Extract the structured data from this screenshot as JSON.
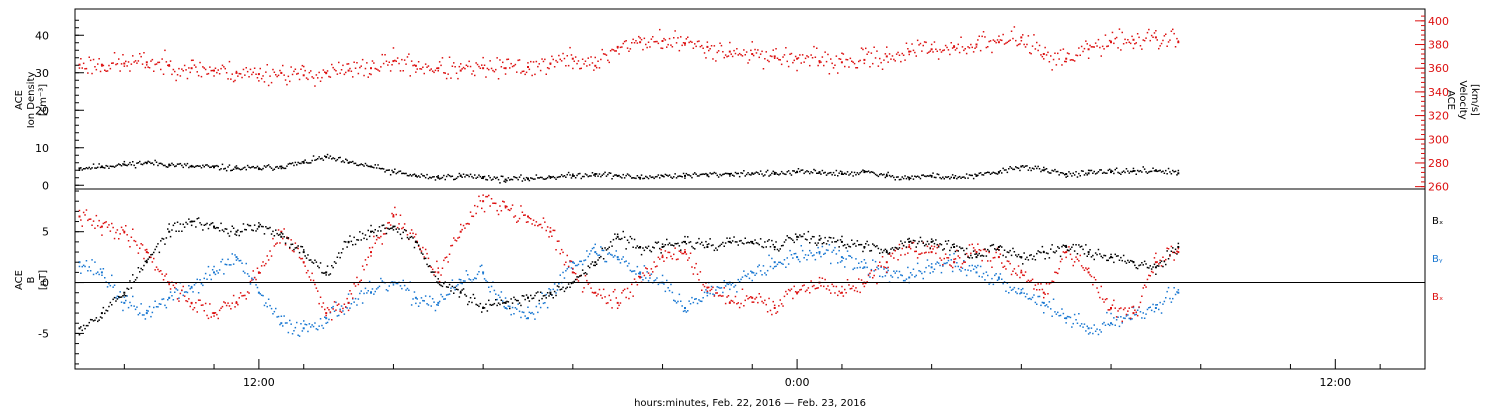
{
  "xlabel": "hours:minutes, Feb. 22, 2016 — Feb. 23, 2016",
  "x_ticks": [
    "12:00",
    "0:00",
    "12:00"
  ],
  "x_tick_hours": [
    12,
    24,
    36
  ],
  "x_range_hours": [
    7.9,
    38.0
  ],
  "colors": {
    "density": "#000000",
    "velocity": "#dd1111",
    "bx": "#000000",
    "by": "#1a78d2",
    "bz": "#dd1111",
    "axis": "#000000"
  },
  "chart_data": [
    {
      "type": "scatter",
      "panel": "plasma",
      "ylabel_left": [
        "ACE",
        "Ion Density",
        "[cm⁻³]"
      ],
      "ylabel_right": [
        "ACE",
        "Velocity",
        "[km/s]"
      ],
      "ylim_left": [
        -1,
        47
      ],
      "ylim_right": [
        258,
        410
      ],
      "yticks_left": [
        0,
        10,
        20,
        30,
        40
      ],
      "yticks_right": [
        260,
        280,
        300,
        320,
        340,
        360,
        380,
        400
      ],
      "series": [
        {
          "key": "density",
          "axis": "left",
          "x_hours": [
            8.0,
            8.5,
            9.0,
            9.5,
            10.0,
            10.5,
            11.0,
            11.5,
            12.0,
            12.5,
            13.0,
            13.5,
            14.0,
            14.5,
            15.0,
            15.5,
            16.0,
            16.5,
            17.0,
            17.5,
            18.0,
            18.5,
            19.0,
            19.5,
            20.0,
            20.5,
            21.0,
            21.5,
            22.0,
            22.5,
            23.0,
            23.5,
            24.0,
            24.5,
            25.0,
            25.5,
            26.0,
            26.5,
            27.0,
            27.5,
            28.0,
            28.5,
            29.0,
            29.5,
            30.0,
            30.5,
            31.0,
            31.5,
            32.0,
            32.5
          ],
          "values": [
            4.5,
            5.0,
            5.5,
            6.0,
            5.5,
            5.0,
            4.8,
            4.5,
            4.5,
            5.0,
            6.0,
            7.5,
            6.0,
            5.0,
            3.5,
            2.5,
            2.0,
            2.5,
            2.2,
            1.5,
            1.8,
            2.2,
            2.5,
            3.0,
            2.5,
            2.0,
            2.5,
            2.5,
            2.8,
            3.0,
            3.2,
            3.0,
            3.5,
            3.5,
            3.0,
            3.5,
            2.5,
            2.0,
            2.5,
            2.0,
            2.5,
            3.5,
            5.0,
            4.0,
            3.0,
            3.2,
            3.5,
            3.8,
            4.0,
            3.2
          ]
        },
        {
          "key": "velocity",
          "axis": "right",
          "x_hours": [
            8.0,
            8.5,
            9.0,
            9.5,
            10.0,
            10.5,
            11.0,
            11.5,
            12.0,
            12.5,
            13.0,
            13.5,
            14.0,
            14.5,
            15.0,
            15.5,
            16.0,
            16.5,
            17.0,
            17.5,
            18.0,
            18.5,
            19.0,
            19.5,
            20.0,
            20.5,
            21.0,
            21.5,
            22.0,
            22.5,
            23.0,
            23.5,
            24.0,
            24.5,
            25.0,
            25.5,
            26.0,
            26.5,
            27.0,
            27.5,
            28.0,
            28.5,
            29.0,
            29.5,
            30.0,
            30.5,
            31.0,
            31.5,
            32.0,
            32.5
          ],
          "values": [
            363,
            363,
            364,
            365,
            362,
            360,
            358,
            356,
            355,
            356,
            354,
            356,
            358,
            360,
            366,
            362,
            360,
            358,
            360,
            360,
            361,
            364,
            368,
            362,
            378,
            382,
            383,
            381,
            378,
            374,
            372,
            370,
            368,
            366,
            365,
            367,
            370,
            374,
            376,
            378,
            380,
            382,
            386,
            372,
            368,
            376,
            382,
            384,
            386,
            382
          ]
        }
      ]
    },
    {
      "type": "scatter",
      "panel": "magnetic-field",
      "ylabel_left": [
        "ACE",
        "B",
        "[nT]"
      ],
      "ylim": [
        -8.5,
        9.2
      ],
      "yticks": [
        -5,
        0,
        5
      ],
      "zero_line": true,
      "legend": [
        "Bₓ",
        "Bᵧ",
        "Bₓ"
      ],
      "legend_position": "right",
      "series": [
        {
          "key": "bx",
          "x_hours": [
            8.0,
            8.5,
            9.0,
            9.5,
            10.0,
            10.5,
            11.0,
            11.5,
            12.0,
            12.5,
            13.0,
            13.5,
            14.0,
            14.5,
            15.0,
            15.5,
            16.0,
            16.5,
            17.0,
            17.5,
            18.0,
            18.5,
            19.0,
            19.5,
            20.0,
            20.5,
            21.0,
            21.5,
            22.0,
            22.5,
            23.0,
            23.5,
            24.0,
            24.5,
            25.0,
            25.5,
            26.0,
            26.5,
            27.0,
            27.5,
            28.0,
            28.5,
            29.0,
            29.5,
            30.0,
            30.5,
            31.0,
            31.5,
            32.0,
            32.5
          ],
          "values": [
            -4.5,
            -3.0,
            -1.0,
            2.0,
            5.0,
            6.0,
            5.5,
            5.0,
            5.5,
            4.5,
            3.0,
            1.0,
            4.0,
            5.0,
            5.5,
            4.0,
            0.0,
            -1.0,
            -2.5,
            -2.0,
            -1.5,
            -1.0,
            0.0,
            2.0,
            4.5,
            3.5,
            3.5,
            4.0,
            3.5,
            4.0,
            4.0,
            3.5,
            4.5,
            4.2,
            4.0,
            3.5,
            3.0,
            4.0,
            4.0,
            3.5,
            2.5,
            3.5,
            2.5,
            3.0,
            3.5,
            3.0,
            2.5,
            2.0,
            1.5,
            3.5
          ]
        },
        {
          "key": "by",
          "x_hours": [
            8.0,
            8.5,
            9.0,
            9.5,
            10.0,
            10.5,
            11.0,
            11.5,
            12.0,
            12.5,
            13.0,
            13.5,
            14.0,
            14.5,
            15.0,
            15.5,
            16.0,
            16.5,
            17.0,
            17.5,
            18.0,
            18.5,
            19.0,
            19.5,
            20.0,
            20.5,
            21.0,
            21.5,
            22.0,
            22.5,
            23.0,
            23.5,
            24.0,
            24.5,
            25.0,
            25.5,
            26.0,
            26.5,
            27.0,
            27.5,
            28.0,
            28.5,
            29.0,
            29.5,
            30.0,
            30.5,
            31.0,
            31.5,
            32.0,
            32.5
          ],
          "values": [
            2.0,
            1.0,
            -2.0,
            -3.0,
            -1.5,
            -0.5,
            1.0,
            2.5,
            -1.0,
            -4.0,
            -4.5,
            -3.5,
            -2.0,
            -1.0,
            0.0,
            -1.5,
            -2.0,
            0.0,
            1.0,
            -2.5,
            -3.5,
            -1.0,
            2.0,
            3.0,
            2.5,
            1.0,
            0.0,
            -2.5,
            -1.0,
            0.0,
            1.0,
            2.0,
            2.5,
            3.0,
            2.5,
            1.5,
            1.0,
            0.5,
            1.5,
            2.0,
            1.0,
            0.5,
            -1.0,
            -2.0,
            -3.5,
            -4.5,
            -4.0,
            -3.0,
            -2.5,
            -1.0
          ]
        },
        {
          "key": "bz",
          "x_hours": [
            8.0,
            8.5,
            9.0,
            9.5,
            10.0,
            10.5,
            11.0,
            11.5,
            12.0,
            12.5,
            13.0,
            13.5,
            14.0,
            14.5,
            15.0,
            15.5,
            16.0,
            16.5,
            17.0,
            17.5,
            18.0,
            18.5,
            19.0,
            19.5,
            20.0,
            20.5,
            21.0,
            21.5,
            22.0,
            22.5,
            23.0,
            23.5,
            24.0,
            24.5,
            25.0,
            25.5,
            26.0,
            26.5,
            27.0,
            27.5,
            28.0,
            28.5,
            29.0,
            29.5,
            30.0,
            30.5,
            31.0,
            31.5,
            32.0,
            32.5
          ],
          "values": [
            6.5,
            5.5,
            5.0,
            3.0,
            0.0,
            -2.0,
            -3.0,
            -2.0,
            1.0,
            5.0,
            2.0,
            -3.0,
            -2.0,
            3.0,
            6.5,
            4.0,
            1.0,
            5.0,
            8.0,
            7.5,
            6.5,
            5.0,
            1.0,
            -1.0,
            -2.0,
            0.5,
            2.5,
            3.0,
            -0.5,
            -2.0,
            -1.5,
            -2.5,
            -1.0,
            0.0,
            -1.0,
            0.0,
            2.0,
            3.5,
            3.0,
            2.0,
            3.0,
            2.5,
            1.0,
            -1.0,
            3.0,
            1.0,
            -2.5,
            -3.0,
            2.0,
            3.0
          ]
        }
      ]
    }
  ]
}
